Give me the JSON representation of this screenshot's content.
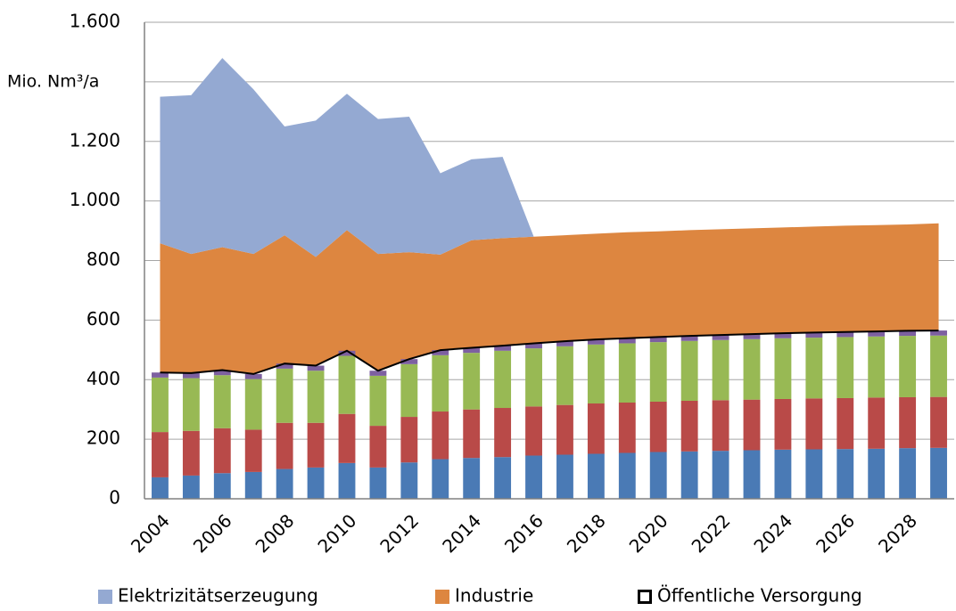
{
  "chart_data": {
    "type": "combo",
    "y_label": "Mio. Nm³/a",
    "categories": [
      "2004",
      null,
      "2006",
      null,
      "2008",
      null,
      "2010",
      null,
      "2012",
      null,
      "2014",
      null,
      "2016",
      null,
      "2018",
      null,
      "2020",
      null,
      "2022",
      null,
      "2024",
      null,
      "2026",
      null,
      "2028",
      null
    ],
    "ylim": [
      0,
      1600
    ],
    "yticks": [
      0,
      200,
      400,
      600,
      800,
      {
        "value": 1000,
        "label": "1.000"
      },
      {
        "value": 1200,
        "label": "1.200"
      },
      {
        "value": 1400,
        "label": null
      },
      {
        "value": 1600,
        "label": "1.600"
      }
    ],
    "grid": true,
    "legend": "bottom",
    "series": [
      {
        "name": "Elektrizitätserzeugung",
        "type": "area",
        "color": "#94a9d2",
        "values": [
          492,
          533,
          635,
          553,
          365,
          458,
          458,
          453,
          455,
          273,
          272,
          273,
          0,
          null,
          null,
          null,
          null,
          null,
          null,
          null,
          null,
          null,
          null,
          null,
          null,
          null
        ]
      },
      {
        "name": "Industrie",
        "type": "area",
        "color": "#dd8640",
        "values": [
          434,
          400,
          413,
          403,
          431,
          365,
          405,
          392,
          359,
          321,
          361,
          361,
          358,
          356,
          355,
          356,
          355,
          355,
          355,
          355,
          355,
          356,
          357,
          357,
          357,
          360
        ]
      },
      {
        "name": "Öffentliche Versorgung",
        "type": "line",
        "color": "#000000",
        "values": [
          424,
          422,
          432,
          419,
          454,
          447,
          497,
          430,
          469,
          499,
          507,
          514,
          522,
          529,
          535,
          539,
          543,
          547,
          550,
          553,
          556,
          558,
          560,
          562,
          564,
          565
        ]
      },
      {
        "type": "bar",
        "color": "#4a7ab5",
        "values": [
          72,
          78,
          86,
          90,
          100,
          105,
          120,
          105,
          122,
          133,
          137,
          140,
          145,
          148,
          151,
          154,
          157,
          159,
          161,
          163,
          165,
          166,
          167,
          168,
          170,
          171
        ]
      },
      {
        "type": "bar",
        "color": "#b94a48",
        "values": [
          152,
          150,
          151,
          142,
          155,
          150,
          165,
          140,
          153,
          160,
          163,
          165,
          165,
          167,
          169,
          169,
          169,
          170,
          170,
          170,
          170,
          171,
          171,
          172,
          171,
          171
        ]
      },
      {
        "type": "bar",
        "color": "#98b954",
        "values": [
          183,
          177,
          178,
          170,
          182,
          175,
          195,
          168,
          177,
          189,
          190,
          192,
          195,
          197,
          198,
          199,
          200,
          201,
          202,
          203,
          204,
          204,
          205,
          205,
          206,
          206
        ]
      },
      {
        "type": "bar",
        "color": "#7d60a0",
        "values": [
          17,
          17,
          17,
          17,
          17,
          17,
          17,
          17,
          17,
          17,
          17,
          17,
          17,
          17,
          17,
          17,
          17,
          17,
          17,
          17,
          17,
          17,
          17,
          17,
          17,
          17
        ]
      }
    ]
  }
}
